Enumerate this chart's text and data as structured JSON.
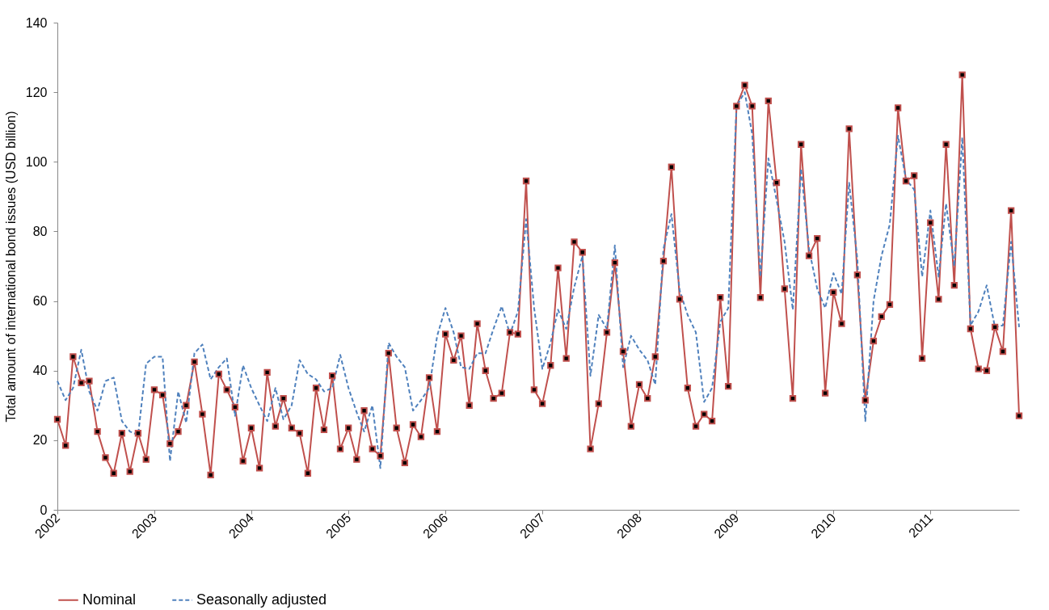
{
  "chart_data": {
    "type": "line",
    "ylabel": "Total amount of international bond issues (USD billion)",
    "xlim": [
      "2002-01",
      "2011-12"
    ],
    "xticks": [
      "2002",
      "2003",
      "2004",
      "2005",
      "2006",
      "2007",
      "2008",
      "2009",
      "2010",
      "2011"
    ],
    "ylim": [
      0,
      140
    ],
    "yticks": [
      0,
      20,
      40,
      60,
      80,
      100,
      120,
      140
    ],
    "grid": false,
    "legend": "bottom",
    "x": [
      "2002-01",
      "2002-02",
      "2002-03",
      "2002-04",
      "2002-05",
      "2002-06",
      "2002-07",
      "2002-08",
      "2002-09",
      "2002-10",
      "2002-11",
      "2002-12",
      "2003-01",
      "2003-02",
      "2003-03",
      "2003-04",
      "2003-05",
      "2003-06",
      "2003-07",
      "2003-08",
      "2003-09",
      "2003-10",
      "2003-11",
      "2003-12",
      "2004-01",
      "2004-02",
      "2004-03",
      "2004-04",
      "2004-05",
      "2004-06",
      "2004-07",
      "2004-08",
      "2004-09",
      "2004-10",
      "2004-11",
      "2004-12",
      "2005-01",
      "2005-02",
      "2005-03",
      "2005-04",
      "2005-05",
      "2005-06",
      "2005-07",
      "2005-08",
      "2005-09",
      "2005-10",
      "2005-11",
      "2005-12",
      "2006-01",
      "2006-02",
      "2006-03",
      "2006-04",
      "2006-05",
      "2006-06",
      "2006-07",
      "2006-08",
      "2006-09",
      "2006-10",
      "2006-11",
      "2006-12",
      "2007-01",
      "2007-02",
      "2007-03",
      "2007-04",
      "2007-05",
      "2007-06",
      "2007-07",
      "2007-08",
      "2007-09",
      "2007-10",
      "2007-11",
      "2007-12",
      "2008-01",
      "2008-02",
      "2008-03",
      "2008-04",
      "2008-05",
      "2008-06",
      "2008-07",
      "2008-08",
      "2008-09",
      "2008-10",
      "2008-11",
      "2008-12",
      "2009-01",
      "2009-02",
      "2009-03",
      "2009-04",
      "2009-05",
      "2009-06",
      "2009-07",
      "2009-08",
      "2009-09",
      "2009-10",
      "2009-11",
      "2009-12",
      "2010-01",
      "2010-02",
      "2010-03",
      "2010-04",
      "2010-05",
      "2010-06",
      "2010-07",
      "2010-08",
      "2010-09",
      "2010-10",
      "2010-11",
      "2010-12",
      "2011-01",
      "2011-02",
      "2011-03",
      "2011-04",
      "2011-05",
      "2011-06",
      "2011-07",
      "2011-08",
      "2011-09",
      "2011-10",
      "2011-11",
      "2011-12"
    ],
    "series": [
      {
        "name": "Nominal",
        "color": "#c0504d",
        "marker": "square",
        "line_style": "solid",
        "values": [
          26,
          18.5,
          44,
          36.5,
          37,
          22.5,
          15,
          10.5,
          22,
          11,
          22,
          14.5,
          34.5,
          33,
          19,
          22.5,
          30,
          42.5,
          27.5,
          10,
          39,
          34.5,
          29.5,
          14,
          23.5,
          12,
          39.5,
          24,
          32,
          23.5,
          22,
          10.5,
          35,
          23,
          38.5,
          17.5,
          23.5,
          14.5,
          28.5,
          17.5,
          15.5,
          45,
          23.5,
          13.5,
          24.5,
          21,
          38,
          22.5,
          50.5,
          43,
          50,
          30,
          53.5,
          40,
          32,
          33.5,
          51,
          50.5,
          94.5,
          34.5,
          30.5,
          41.5,
          69.5,
          43.5,
          77,
          74,
          17.5,
          30.5,
          51,
          71,
          45.5,
          24,
          36,
          32,
          44,
          71.5,
          98.5,
          60.5,
          35,
          24,
          27.5,
          25.5,
          61,
          35.5,
          116,
          122,
          116,
          61,
          117.5,
          94,
          63.5,
          32,
          105,
          73,
          78,
          33.5,
          62.5,
          53.5,
          109.5,
          67.5,
          31.5,
          48.5,
          55.5,
          59,
          115.5,
          94.5,
          96,
          43.5,
          82.5,
          60.5,
          105,
          64.5,
          125,
          52,
          40.5,
          40,
          52.5,
          45.5,
          86,
          27
        ]
      },
      {
        "name": "Seasonally adjusted",
        "color": "#4f81bd",
        "marker": "none",
        "line_style": "dashed",
        "values": [
          37,
          31.5,
          35,
          46,
          34,
          28.5,
          37,
          38,
          25.5,
          22.5,
          21.5,
          42,
          44,
          44,
          14,
          34,
          25,
          45,
          47.5,
          37.5,
          41,
          43.5,
          27,
          41.5,
          35,
          30,
          25.5,
          35,
          26,
          30,
          43,
          39,
          37.5,
          34,
          35,
          44.5,
          35,
          28,
          22.5,
          30,
          12,
          48,
          44,
          41,
          28.5,
          31.5,
          35,
          50,
          58,
          51,
          41,
          40.5,
          45,
          45,
          52,
          58.5,
          50.5,
          57,
          83.5,
          58,
          40.5,
          48,
          57.5,
          52,
          64,
          73,
          38.5,
          56,
          52,
          76,
          41,
          50,
          46,
          43,
          36,
          75,
          85,
          63,
          56,
          51,
          31,
          35,
          54,
          58,
          116,
          120,
          108,
          67,
          101,
          89,
          77,
          57.5,
          98,
          75,
          63.5,
          58,
          68,
          62,
          94,
          72,
          25.5,
          60,
          73,
          82,
          107.5,
          95,
          92,
          67,
          86,
          67,
          88,
          70,
          107,
          53,
          57,
          64.5,
          52.5,
          53,
          77,
          52.5
        ]
      }
    ]
  }
}
